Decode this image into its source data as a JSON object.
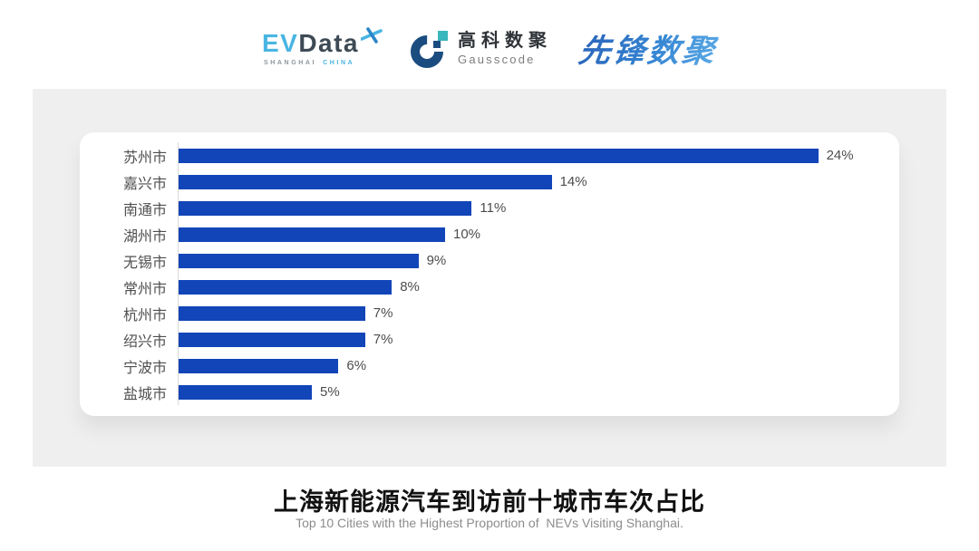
{
  "header": {
    "evdata": {
      "ev": "EV",
      "data": "Data",
      "sub_left": "SHANGHAI",
      "sub_right": "CHINA"
    },
    "gausscode": {
      "cn": "高科数聚",
      "en": "Gausscode"
    },
    "pioneer": {
      "text": "先锋数聚"
    }
  },
  "chart_data": {
    "type": "bar",
    "orientation": "horizontal",
    "categories": [
      "苏州市",
      "嘉兴市",
      "南通市",
      "湖州市",
      "无锡市",
      "常州市",
      "杭州市",
      "绍兴市",
      "宁波市",
      "盐城市"
    ],
    "values": [
      24,
      14,
      11,
      10,
      9,
      8,
      7,
      7,
      6,
      5
    ],
    "value_suffix": "%",
    "xlim": [
      0,
      26
    ],
    "grid": false,
    "legend": "none",
    "bar_color": "#1245b8",
    "label_color": "#4f4f4f",
    "axis_line_color": "#d9d9d9",
    "title": "上海新能源汽车到访前十城市车次占比",
    "subtitle": "Top 10 Cities with the Highest Proportion of  NEVs Visiting Shanghai."
  },
  "colors": {
    "panel_bg": "#efefef",
    "card_bg": "#ffffff",
    "evdata_blue": "#49b5e2",
    "evdata_slate": "#3d4a55",
    "gauss_navy": "#1b4c80",
    "gauss_teal": "#3ab7bd",
    "pioneer_blue": "#2f7bce"
  }
}
